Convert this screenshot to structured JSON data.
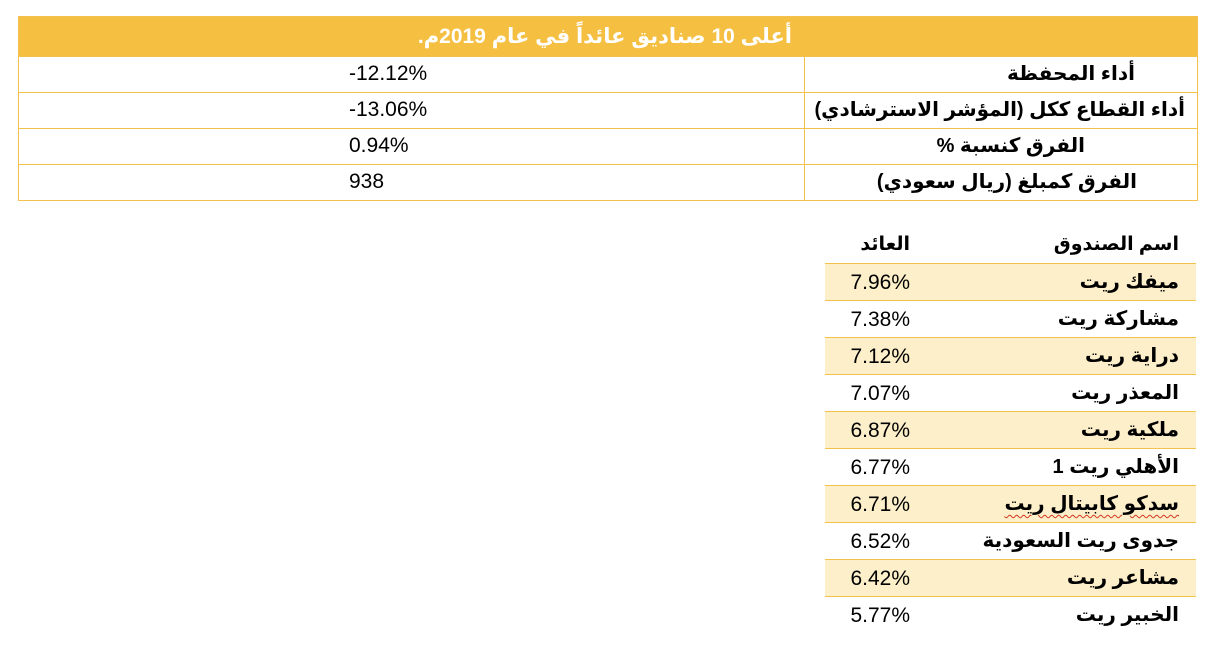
{
  "summary": {
    "title": "أعلى 10 صناديق عائداً في عام 2019م.",
    "rows": [
      {
        "label": "أداء المحفظة",
        "value": "-12.12%"
      },
      {
        "label": "أداء القطاع ككل (المؤشر الاسترشادي)",
        "value": "-13.06%"
      },
      {
        "label": "الفرق كنسبة %",
        "value": "0.94%"
      },
      {
        "label": "الفرق كمبلغ (ريال سعودي)",
        "value": "938"
      }
    ]
  },
  "funds": {
    "header": {
      "name": "اسم الصندوق",
      "return": "العائد"
    },
    "rows": [
      {
        "name": "ميفك ريت",
        "return": "7.96%"
      },
      {
        "name": "مشاركة ريت",
        "return": "7.38%"
      },
      {
        "name": "دراية ريت",
        "return": "7.12%"
      },
      {
        "name": "المعذر ريت",
        "return": "7.07%"
      },
      {
        "name": "ملكية ريت",
        "return": "6.87%"
      },
      {
        "name": "الأهلي ريت 1",
        "return": "6.77%"
      },
      {
        "name": "سدكو كابيتال ريت",
        "return": "6.71%"
      },
      {
        "name": "جدوى ريت السعودية",
        "return": "6.52%"
      },
      {
        "name": "مشاعر ريت",
        "return": "6.42%"
      },
      {
        "name": "الخبير ريت",
        "return": "5.77%"
      }
    ]
  },
  "colors": {
    "accent": "#f5bf42",
    "band": "#fcefc9",
    "spellcheck": "#d6361f"
  }
}
